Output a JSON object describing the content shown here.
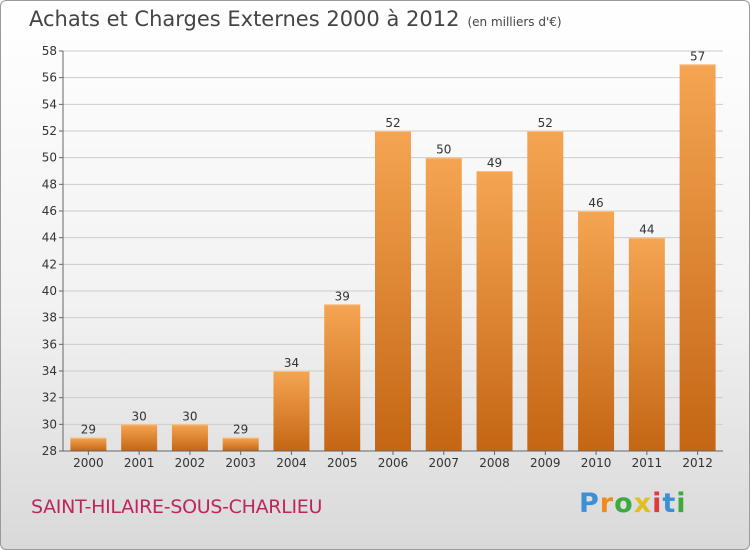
{
  "title": "Achats et Charges Externes 2000 à 2012",
  "unit": "(en milliers d'€)",
  "town": "SAINT-HILAIRE-SOUS-CHARLIEU",
  "logo": [
    "P",
    "r",
    "o",
    "x",
    "i",
    "t",
    "i"
  ],
  "colors": {
    "bar_top": "#f5a552",
    "bar_bottom": "#c46614",
    "grid": "#cccccc"
  },
  "chart_data": {
    "type": "bar",
    "title": "Achats et Charges Externes 2000 à 2012",
    "categories": [
      "2000",
      "2001",
      "2002",
      "2003",
      "2004",
      "2005",
      "2006",
      "2007",
      "2008",
      "2009",
      "2010",
      "2011",
      "2012"
    ],
    "values": [
      29,
      30,
      30,
      29,
      34,
      39,
      52,
      50,
      49,
      52,
      46,
      44,
      57
    ],
    "ylim": [
      28,
      58
    ],
    "yticks": [
      28,
      30,
      32,
      34,
      36,
      38,
      40,
      42,
      44,
      46,
      48,
      50,
      52,
      54,
      56,
      58
    ],
    "grid": true,
    "data_labels": true
  }
}
